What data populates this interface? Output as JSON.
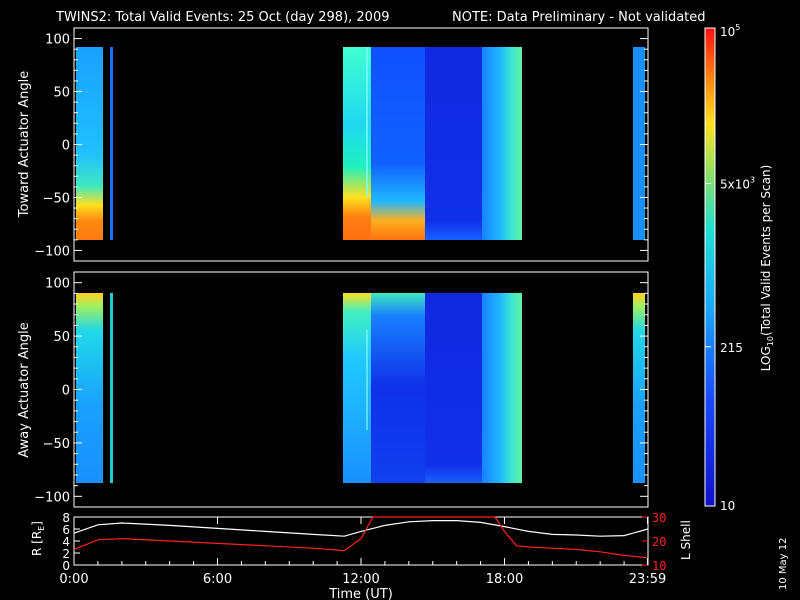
{
  "title": {
    "main": "TWINS2: Total Valid Events: 25 Oct (day 298), 2009",
    "note": "NOTE: Data Preliminary - Not validated",
    "note_color": "#ff2020"
  },
  "side_date": "10 May 12",
  "chart_data": [
    {
      "type": "heatmap",
      "ylabel": "Toward Actuator Angle",
      "ylim": [
        -110,
        110
      ],
      "yticks": [
        100,
        50,
        0,
        -50,
        -100
      ],
      "data_time_ranges_hours": [
        [
          0.0,
          0.65
        ],
        [
          1.05,
          1.15
        ],
        [
          11.2,
          18.95
        ],
        [
          23.5,
          24.0
        ]
      ],
      "color_scale": "log"
    },
    {
      "type": "heatmap",
      "ylabel": "Away Actuator Angle",
      "ylim": [
        -110,
        110
      ],
      "yticks": [
        100,
        50,
        0,
        -50,
        -100
      ],
      "data_time_ranges_hours": [
        [
          0.0,
          0.65
        ],
        [
          1.05,
          1.15
        ],
        [
          11.2,
          18.95
        ],
        [
          23.5,
          24.0
        ]
      ],
      "color_scale": "log"
    },
    {
      "type": "line",
      "ylabel": "R [R",
      "ylabel_sub": "E",
      "ylabel_close": "]",
      "ylim": [
        0,
        8
      ],
      "yticks": [
        8,
        6,
        4,
        2,
        0
      ],
      "right_label": "L Shell",
      "right_ylim": [
        10,
        30
      ],
      "right_yticks": [
        30,
        20,
        10
      ],
      "right_tick_labels": [
        "30",
        "20",
        "10"
      ],
      "xlabel": "Time (UT)",
      "xlim": [
        0,
        24
      ],
      "xtick_labels": [
        "0:00",
        "6:00",
        "12:00",
        "18:00",
        "23:59"
      ],
      "xtick_values": [
        0,
        6,
        12,
        18,
        23.98
      ],
      "series": [
        {
          "name": "R",
          "color": "#ffffff",
          "x": [
            0,
            1,
            2,
            4,
            6,
            8,
            10,
            11.3,
            12,
            13,
            14,
            15,
            16,
            17,
            18,
            19,
            20,
            21,
            22,
            23,
            24
          ],
          "y": [
            5.3,
            6.7,
            7.0,
            6.6,
            6.1,
            5.6,
            5.1,
            4.8,
            5.6,
            6.6,
            7.2,
            7.4,
            7.4,
            7.1,
            6.4,
            5.6,
            5.1,
            5.0,
            4.8,
            4.9,
            6.0
          ]
        },
        {
          "name": "L",
          "color": "#ff2020",
          "x": [
            0,
            1,
            2,
            4,
            6,
            8,
            10,
            11.3,
            12,
            12.5,
            17.6,
            18.0,
            18.5,
            19,
            20,
            21,
            22,
            23,
            24
          ],
          "y": [
            16.5,
            20.5,
            21.0,
            20.0,
            19.0,
            18.0,
            17.0,
            16.0,
            21.0,
            30.0,
            30.0,
            24.0,
            18.0,
            17.5,
            17.0,
            16.5,
            15.5,
            14.0,
            13.0
          ]
        }
      ]
    }
  ],
  "colorbar": {
    "label_base": "LOG",
    "label_sub": "10",
    "label_rest": "(Total Valid Events per Scan)",
    "ticks": [
      {
        "base": "10",
        "exp": "5",
        "value": 100000
      },
      {
        "base": "5x10",
        "exp": "3",
        "value": 5000
      },
      {
        "base": "215",
        "exp": "",
        "value": 215
      },
      {
        "base": "10",
        "exp": "",
        "value": 10
      }
    ],
    "range": [
      10,
      100000
    ]
  }
}
